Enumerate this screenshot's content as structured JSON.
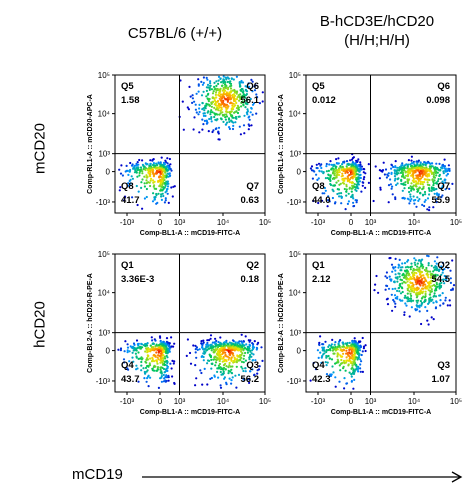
{
  "column_titles": [
    "C57BL/6 (+/+)",
    "B-hCD3E/hCD20\n(H/H;H/H)"
  ],
  "row_labels": [
    "mCD20",
    "hCD20"
  ],
  "x_caption": "mCD19",
  "chart_data": [
    {
      "type": "scatter",
      "panel": "row1-col1",
      "xlabel": "Comp-BL1-A :: mCD19-FITC-A",
      "ylabel": "Comp-RL1-A :: mCD20-APC-A",
      "x_ticks": [
        "-10³",
        "0",
        "10³",
        "10⁴",
        "10⁵"
      ],
      "y_ticks": [
        "-10³",
        "0",
        "10³",
        "10⁴",
        "10⁵"
      ],
      "quadrants": [
        {
          "name": "Q5",
          "value": "1.58",
          "pos": "top-left"
        },
        {
          "name": "Q6",
          "value": "56.1",
          "pos": "top-right"
        },
        {
          "name": "Q8",
          "value": "41.7",
          "pos": "bottom-left"
        },
        {
          "name": "Q7",
          "value": "0.63",
          "pos": "bottom-right"
        }
      ],
      "populations": [
        {
          "x": 0,
          "y": 0,
          "weight": 0.42
        },
        {
          "x": 3.6,
          "y": 4.0,
          "weight": 0.56
        }
      ]
    },
    {
      "type": "scatter",
      "panel": "row1-col2",
      "xlabel": "Comp-BL1-A :: mCD19-FITC-A",
      "ylabel": "Comp-RL1-A :: mCD20-APC-A",
      "x_ticks": [
        "-10³",
        "0",
        "10³",
        "10⁴",
        "10⁵"
      ],
      "y_ticks": [
        "-10³",
        "0",
        "10³",
        "10⁴",
        "10⁵"
      ],
      "quadrants": [
        {
          "name": "Q5",
          "value": "0.012",
          "pos": "top-left"
        },
        {
          "name": "Q6",
          "value": "0.098",
          "pos": "top-right"
        },
        {
          "name": "Q8",
          "value": "44.0",
          "pos": "bottom-left"
        },
        {
          "name": "Q7",
          "value": "55.9",
          "pos": "bottom-right"
        }
      ],
      "populations": [
        {
          "x": 0,
          "y": 0,
          "weight": 0.44
        },
        {
          "x": 3.7,
          "y": 0,
          "weight": 0.56
        }
      ]
    },
    {
      "type": "scatter",
      "panel": "row2-col1",
      "xlabel": "Comp-BL1-A :: mCD19-FITC-A",
      "ylabel": "Comp-BL2-A :: hCD20-R-PE-A",
      "x_ticks": [
        "-10³",
        "0",
        "10³",
        "10⁴",
        "10⁵"
      ],
      "y_ticks": [
        "-10³",
        "0",
        "10³",
        "10⁴",
        "10⁵"
      ],
      "quadrants": [
        {
          "name": "Q1",
          "value": "3.36E-3",
          "pos": "top-left"
        },
        {
          "name": "Q2",
          "value": "0.18",
          "pos": "top-right"
        },
        {
          "name": "Q4",
          "value": "43.7",
          "pos": "bottom-left"
        },
        {
          "name": "Q3",
          "value": "56.2",
          "pos": "bottom-right"
        }
      ],
      "populations": [
        {
          "x": 0,
          "y": 0,
          "weight": 0.44
        },
        {
          "x": 3.7,
          "y": 0,
          "weight": 0.56
        }
      ]
    },
    {
      "type": "scatter",
      "panel": "row2-col2",
      "xlabel": "Comp-BL1-A :: mCD19-FITC-A",
      "ylabel": "Comp-BL2-A :: hCD20-R-PE-A",
      "x_ticks": [
        "-10³",
        "0",
        "10³",
        "10⁴",
        "10⁵"
      ],
      "y_ticks": [
        "-10³",
        "0",
        "10³",
        "10⁴",
        "10⁵"
      ],
      "quadrants": [
        {
          "name": "Q1",
          "value": "2.12",
          "pos": "top-left"
        },
        {
          "name": "Q2",
          "value": "54.5",
          "pos": "top-right"
        },
        {
          "name": "Q4",
          "value": "42.3",
          "pos": "bottom-left"
        },
        {
          "name": "Q3",
          "value": "1.07",
          "pos": "bottom-right"
        }
      ],
      "populations": [
        {
          "x": 0,
          "y": 0,
          "weight": 0.42
        },
        {
          "x": 3.7,
          "y": 3.9,
          "weight": 0.55
        }
      ]
    }
  ]
}
